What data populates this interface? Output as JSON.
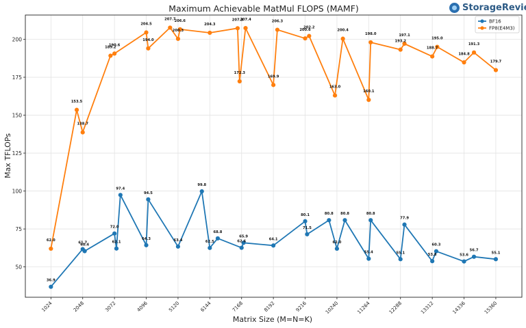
{
  "brand": {
    "logo_text": "StorageReview",
    "logo_icon": "storagereview-logo-icon"
  },
  "chart_data": {
    "type": "line",
    "title": "Maximum Achievable MatMul FLOPS (MAMF)",
    "xlabel": "Matrix Size (M=N=K)",
    "ylabel": "Max TFLOPs",
    "x_ticks": [
      1024,
      2048,
      3072,
      4096,
      5120,
      6144,
      7168,
      8192,
      9216,
      10240,
      11264,
      12288,
      13312,
      14336,
      15360
    ],
    "y_ticks": [
      50,
      75,
      100,
      125,
      150,
      175,
      200
    ],
    "xlim": [
      200,
      16200
    ],
    "ylim": [
      30,
      216
    ],
    "grid": true,
    "legend_position": "top-right",
    "series": [
      {
        "name": "BF16",
        "color": "#1f77b4",
        "x": [
          1024,
          2048,
          2112,
          3072,
          3136,
          3264,
          4096,
          4160,
          5120,
          5888,
          6144,
          6400,
          7168,
          7232,
          8192,
          9216,
          9280,
          9984,
          10240,
          10496,
          11264,
          11328,
          12288,
          12416,
          13312,
          13440,
          14336,
          14656,
          15360
        ],
        "y": [
          36.9,
          61.7,
          60.4,
          72.0,
          62.1,
          97.4,
          64.3,
          94.5,
          63.4,
          99.8,
          62.5,
          68.8,
          62.6,
          65.9,
          64.1,
          80.1,
          71.5,
          80.8,
          62.0,
          80.8,
          55.4,
          80.8,
          55.1,
          77.9,
          53.8,
          60.3,
          53.6,
          56.7,
          55.1
        ]
      },
      {
        "name": "FP8(E4M3)",
        "color": "#ff7f0e",
        "x": [
          1024,
          1856,
          2048,
          2944,
          3072,
          4096,
          4160,
          4864,
          5120,
          5184,
          6144,
          7040,
          7104,
          7296,
          8192,
          8320,
          9216,
          9344,
          10176,
          10432,
          11264,
          11328,
          12288,
          12416,
          13312,
          13472,
          14336,
          14656,
          15360
        ],
        "y": [
          62.0,
          153.5,
          138.7,
          189.2,
          190.6,
          204.5,
          194.0,
          207.7,
          200.3,
          206.6,
          204.3,
          207.3,
          172.3,
          207.4,
          169.9,
          206.3,
          200.6,
          202.2,
          163.0,
          200.4,
          160.1,
          198.0,
          193.2,
          197.1,
          188.7,
          195.0,
          184.8,
          191.3,
          179.7
        ]
      }
    ]
  }
}
